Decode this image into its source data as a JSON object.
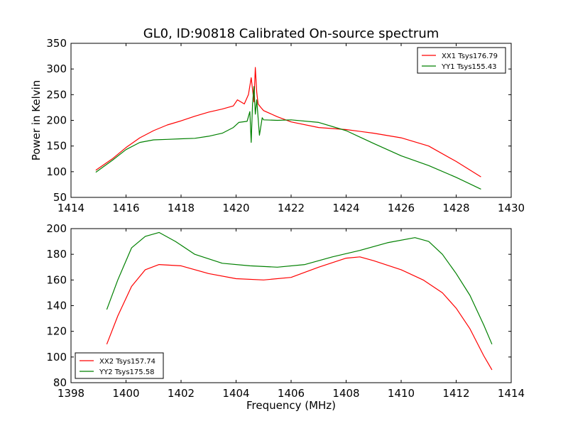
{
  "figure": {
    "title": "GL0, ID:90818 Calibrated On-source spectrum"
  },
  "chart_data": [
    {
      "type": "line",
      "title": "GL0, ID:90818 Calibrated On-source spectrum",
      "xlabel": "",
      "ylabel": "Power in Kelvin",
      "xlim": [
        1414,
        1430
      ],
      "ylim": [
        50,
        350
      ],
      "xticks": [
        1414,
        1416,
        1418,
        1420,
        1422,
        1424,
        1426,
        1428,
        1430
      ],
      "yticks": [
        50,
        100,
        150,
        200,
        250,
        300,
        350
      ],
      "legend_position": "top-right",
      "grid": false,
      "series": [
        {
          "name": "XX1 Tsys176.79",
          "color": "#ff0000",
          "x": [
            1414.9,
            1415.5,
            1416.0,
            1416.5,
            1417.0,
            1417.5,
            1418.0,
            1418.5,
            1419.0,
            1419.5,
            1419.9,
            1420.05,
            1420.3,
            1420.45,
            1420.55,
            1420.65,
            1420.7,
            1420.75,
            1420.8,
            1420.9,
            1421.0,
            1421.5,
            1422.0,
            1423.0,
            1424.0,
            1425.0,
            1426.0,
            1427.0,
            1428.0,
            1428.9
          ],
          "y": [
            103,
            125,
            147,
            166,
            180,
            191,
            199,
            208,
            216,
            222,
            228,
            240,
            232,
            250,
            283,
            236,
            303,
            255,
            232,
            225,
            219,
            207,
            197,
            186,
            182,
            175,
            166,
            150,
            120,
            90
          ]
        },
        {
          "name": "YY1 Tsys155.43",
          "color": "#008000",
          "x": [
            1414.9,
            1415.5,
            1416.0,
            1416.5,
            1417.0,
            1417.5,
            1418.0,
            1418.5,
            1419.0,
            1419.5,
            1419.9,
            1420.1,
            1420.4,
            1420.5,
            1420.55,
            1420.6,
            1420.65,
            1420.7,
            1420.75,
            1420.85,
            1420.95,
            1421.0,
            1421.5,
            1422.0,
            1423.0,
            1424.0,
            1425.0,
            1426.0,
            1427.0,
            1428.0,
            1428.9
          ],
          "y": [
            99,
            122,
            143,
            157,
            162,
            163,
            164,
            165,
            169,
            175,
            186,
            196,
            198,
            217,
            157,
            232,
            266,
            212,
            240,
            171,
            205,
            201,
            200,
            201,
            196,
            180,
            155,
            131,
            112,
            89,
            66
          ]
        }
      ]
    },
    {
      "type": "line",
      "title": "",
      "xlabel": "Frequency (MHz)",
      "ylabel": "",
      "xlim": [
        1398,
        1414
      ],
      "ylim": [
        80,
        200
      ],
      "xticks": [
        1398,
        1400,
        1402,
        1404,
        1406,
        1408,
        1410,
        1412,
        1414
      ],
      "yticks": [
        80,
        100,
        120,
        140,
        160,
        180,
        200
      ],
      "legend_position": "bottom-left",
      "grid": false,
      "series": [
        {
          "name": "XX2 Tsys157.74",
          "color": "#ff0000",
          "x": [
            1399.3,
            1399.7,
            1400.2,
            1400.7,
            1401.2,
            1402.0,
            1403.0,
            1404.0,
            1405.0,
            1406.0,
            1407.0,
            1408.0,
            1408.5,
            1409.0,
            1410.0,
            1410.8,
            1411.5,
            1412.0,
            1412.5,
            1413.0,
            1413.3
          ],
          "y": [
            110,
            132,
            155,
            168,
            172,
            171,
            165,
            161,
            160,
            162,
            170,
            177,
            178,
            175,
            168,
            160,
            150,
            138,
            122,
            101,
            90
          ]
        },
        {
          "name": "YY2 Tsys175.58",
          "color": "#008000",
          "x": [
            1399.3,
            1399.7,
            1400.2,
            1400.7,
            1401.2,
            1401.8,
            1402.5,
            1403.5,
            1404.5,
            1405.5,
            1406.5,
            1407.5,
            1408.5,
            1409.5,
            1410.5,
            1411.0,
            1411.5,
            1412.0,
            1412.5,
            1413.0,
            1413.3
          ],
          "y": [
            137,
            160,
            185,
            194,
            197,
            190,
            180,
            173,
            171,
            170,
            172,
            178,
            183,
            189,
            193,
            190,
            180,
            165,
            148,
            125,
            110
          ]
        }
      ]
    }
  ]
}
